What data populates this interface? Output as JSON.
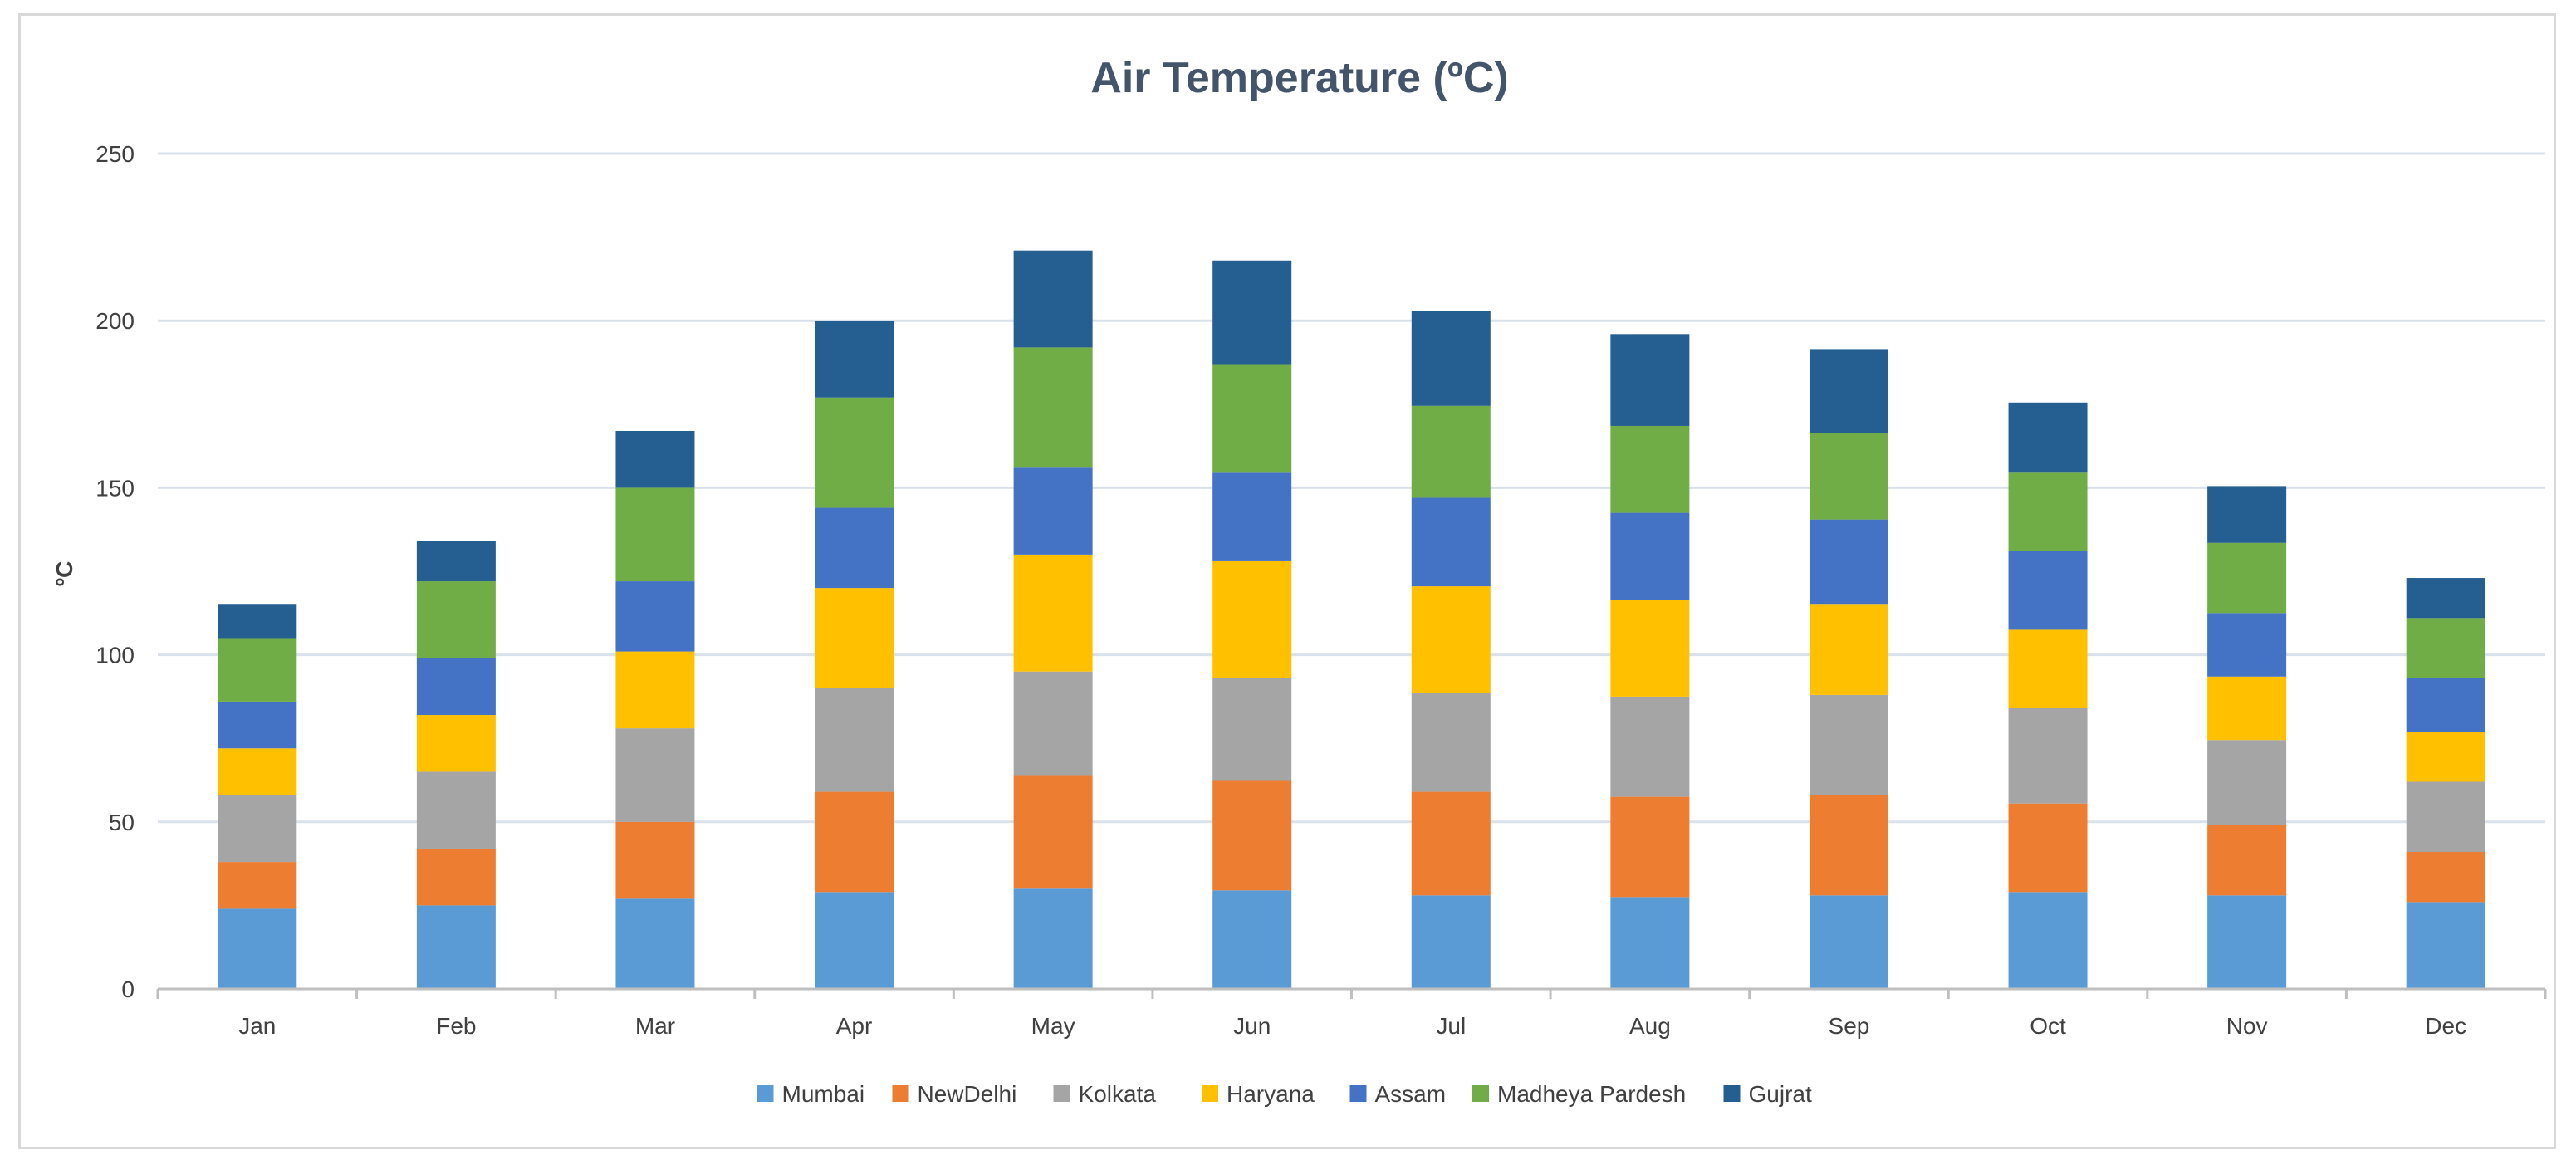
{
  "chart_data": {
    "type": "bar",
    "stacked": true,
    "title": "Air Temperature (ºC)",
    "xlabel": "",
    "ylabel": "ºC",
    "ylim": [
      0,
      250
    ],
    "yticks": [
      0,
      50,
      100,
      150,
      200,
      250
    ],
    "grid": true,
    "legend_position": "bottom",
    "categories": [
      "Jan",
      "Feb",
      "Mar",
      "Apr",
      "May",
      "Jun",
      "Jul",
      "Aug",
      "Sep",
      "Oct",
      "Nov",
      "Dec"
    ],
    "series": [
      {
        "name": "Mumbai",
        "color": "#5b9bd5",
        "values": [
          24,
          25,
          27,
          29,
          30,
          29.5,
          28,
          27.5,
          28,
          29,
          28,
          26
        ]
      },
      {
        "name": "NewDelhi",
        "color": "#ed7d31",
        "values": [
          14,
          17,
          23,
          30,
          34,
          33,
          31,
          30,
          30,
          26.5,
          21,
          15
        ]
      },
      {
        "name": "Kolkata",
        "color": "#a5a5a5",
        "values": [
          20,
          23,
          28,
          31,
          31,
          30.5,
          29.5,
          30,
          30,
          28.5,
          25.5,
          21
        ]
      },
      {
        "name": "Haryana",
        "color": "#ffc000",
        "values": [
          14,
          17,
          23,
          30,
          35,
          35,
          32,
          29,
          27,
          23.5,
          19,
          15
        ]
      },
      {
        "name": "Assam",
        "color": "#4472c4",
        "values": [
          14,
          17,
          21,
          24,
          26,
          26.5,
          26.5,
          26,
          25.5,
          23.5,
          19,
          16
        ]
      },
      {
        "name": "Madheya Pardesh",
        "color": "#70ad47",
        "values": [
          19,
          23,
          28,
          33,
          36,
          32.5,
          27.5,
          26,
          26,
          23.5,
          21,
          18
        ]
      },
      {
        "name": "Gujrat",
        "color": "#255e91",
        "values": [
          10,
          12,
          17,
          23,
          29,
          31,
          28.5,
          27.5,
          25,
          21,
          17,
          12
        ]
      }
    ]
  }
}
